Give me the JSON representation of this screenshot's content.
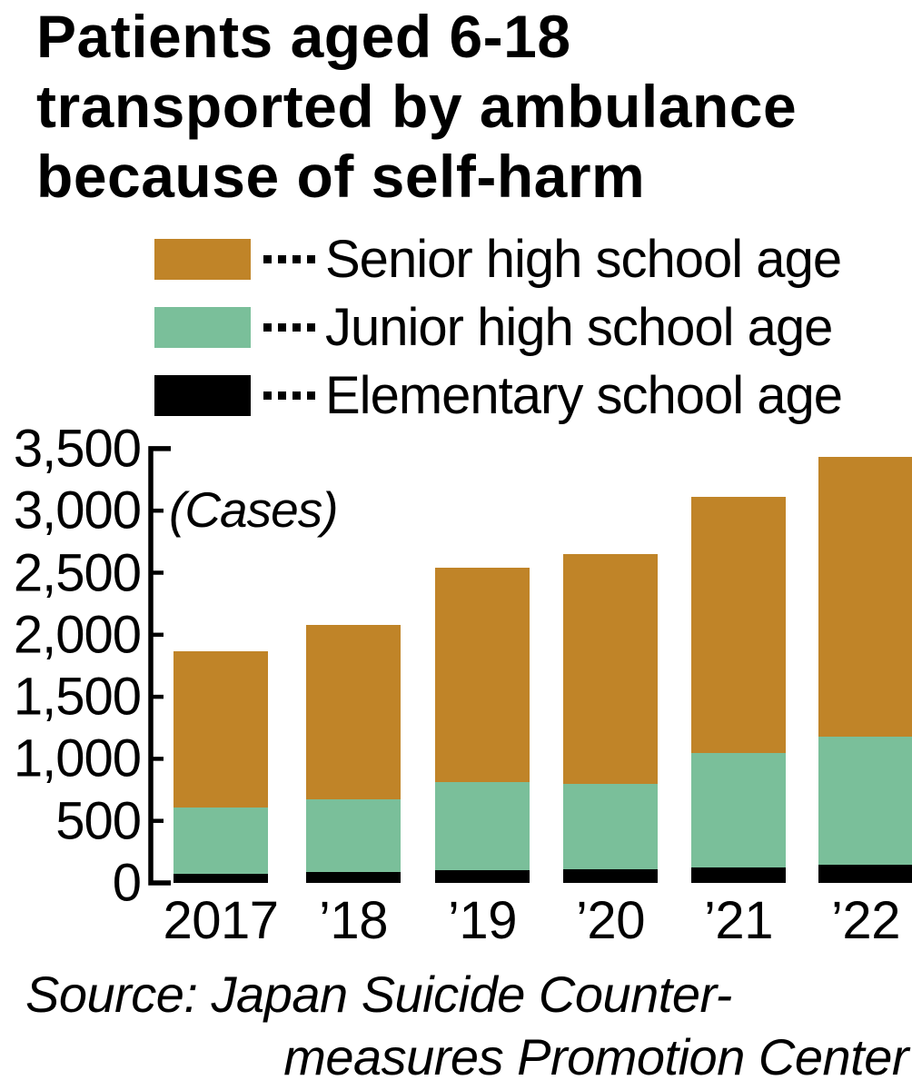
{
  "title": "Patients aged 6-18\ntransported by ambulance\nbecause of self-harm",
  "legend": {
    "items": [
      {
        "icon": "orange-swatch",
        "label": "Senior high school age",
        "color": "#c08428"
      },
      {
        "icon": "green-swatch",
        "label": "Junior high school age",
        "color": "#7abf9a"
      },
      {
        "icon": "black-swatch",
        "label": "Elementary school age",
        "color": "#000000"
      }
    ]
  },
  "chart_data": {
    "type": "bar",
    "stacked": true,
    "title": "Patients aged 6-18 transported by ambulance because of self-harm",
    "unit_label": "(Cases)",
    "categories": [
      "2017",
      "’18",
      "’19",
      "’20",
      "’21",
      "’22"
    ],
    "series": [
      {
        "name": "Elementary school age",
        "color": "#000000",
        "values": [
          70,
          85,
          100,
          110,
          125,
          145
        ]
      },
      {
        "name": "Junior high school age",
        "color": "#7abf9a",
        "values": [
          540,
          590,
          710,
          690,
          925,
          1035
        ]
      },
      {
        "name": "Senior high school age",
        "color": "#c08428",
        "values": [
          1255,
          1405,
          1730,
          1850,
          2060,
          2250
        ]
      }
    ],
    "totals": [
      1865,
      2080,
      2540,
      2650,
      3110,
      3430
    ],
    "xlabel": "",
    "ylabel": "Cases",
    "ylim": [
      0,
      3500
    ],
    "yticks": [
      0,
      500,
      1000,
      1500,
      2000,
      2500,
      3000,
      3500
    ],
    "ytick_labels": [
      "0",
      "500",
      "1,000",
      "1,500",
      "2,000",
      "2,500",
      "3,000",
      "3,500"
    ],
    "grid": false,
    "legend_position": "top"
  },
  "source": {
    "line1": "Source: Japan Suicide Counter-",
    "line2": "measures Promotion Center"
  }
}
